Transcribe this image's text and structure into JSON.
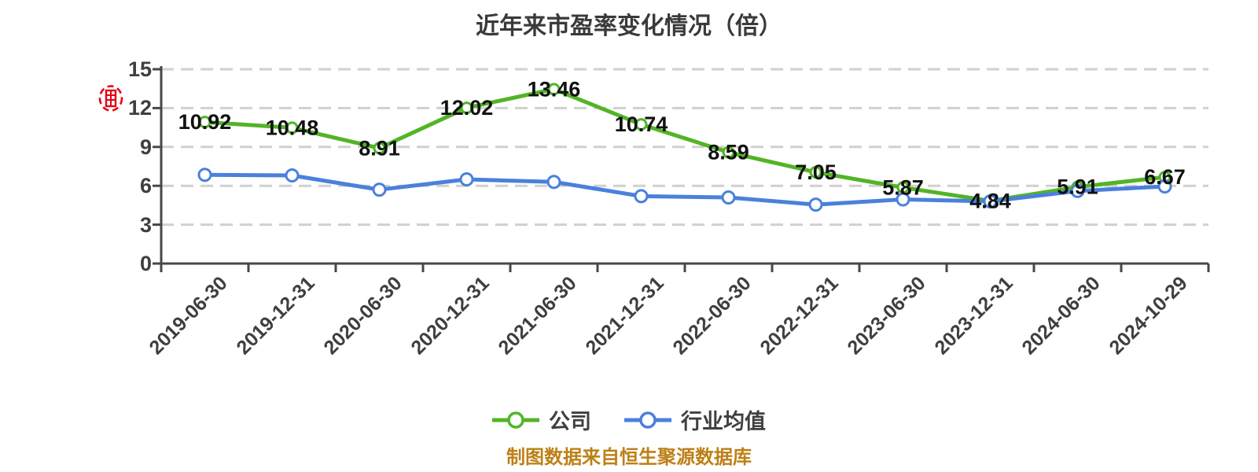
{
  "chart_data": {
    "type": "line",
    "title": "近年来市盈率变化情况（倍）",
    "categories": [
      "2019-06-30",
      "2019-12-31",
      "2020-06-30",
      "2020-12-31",
      "2021-06-30",
      "2021-12-31",
      "2022-06-30",
      "2022-12-31",
      "2023-06-30",
      "2023-12-31",
      "2024-06-30",
      "2024-10-29"
    ],
    "series": [
      {
        "name": "公司",
        "color": "#52b426",
        "show_point_labels": true,
        "values": [
          10.92,
          10.48,
          8.91,
          12.02,
          13.46,
          10.74,
          8.59,
          7.05,
          5.87,
          4.84,
          5.91,
          6.67
        ]
      },
      {
        "name": "行业均值",
        "color": "#4b80dc",
        "show_point_labels": false,
        "values": [
          6.85,
          6.8,
          5.7,
          6.5,
          6.3,
          5.2,
          5.1,
          4.55,
          4.95,
          4.8,
          5.6,
          5.95
        ]
      }
    ],
    "ylim": [
      0,
      15
    ],
    "yticks": [
      0,
      3,
      6,
      9,
      12,
      15
    ],
    "grid": "horizontal-dashed",
    "legend_position": "bottom"
  },
  "footer": {
    "source_note": "制图数据来自恒生聚源数据库"
  },
  "colors": {
    "company_series": "#52b426",
    "industry_series": "#4b80dc",
    "grid": "#d0d0d0",
    "axis": "#474747",
    "point_label": "#111111",
    "tick_text": "#3f3f3f",
    "title": "#3a3a3a",
    "source_note": "#bd8016",
    "seal": "#e60012"
  }
}
